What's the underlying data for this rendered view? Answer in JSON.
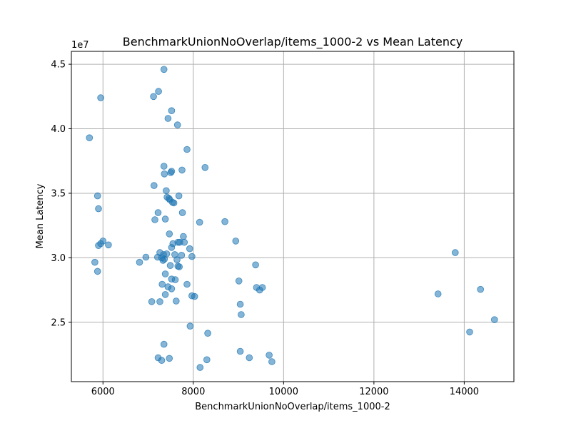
{
  "chart_data": {
    "type": "scatter",
    "title": "BenchmarkUnionNoOverlap/items_1000-2 vs Mean Latency",
    "xlabel": "BenchmarkUnionNoOverlap/items_1000-2",
    "ylabel": "Mean Latency",
    "y_offset_label": "1e7",
    "xlim": [
      5300,
      15100
    ],
    "ylim": [
      20400000,
      46000000
    ],
    "x_ticks": [
      6000,
      8000,
      10000,
      12000,
      14000
    ],
    "x_tick_labels": [
      "6000",
      "8000",
      "10000",
      "12000",
      "14000"
    ],
    "y_ticks": [
      25000000,
      30000000,
      35000000,
      40000000,
      45000000
    ],
    "y_tick_labels": [
      "2.5",
      "3.0",
      "3.5",
      "4.0",
      "4.5"
    ],
    "grid": true,
    "point_color": "#1f77b4",
    "point_alpha": 0.55,
    "points": [
      [
        7350,
        44600000
      ],
      [
        5950,
        42400000
      ],
      [
        7230,
        42900000
      ],
      [
        7120,
        42500000
      ],
      [
        7520,
        41400000
      ],
      [
        7440,
        40800000
      ],
      [
        7650,
        40300000
      ],
      [
        5700,
        39300000
      ],
      [
        7860,
        38400000
      ],
      [
        7350,
        37100000
      ],
      [
        8260,
        37000000
      ],
      [
        7750,
        36800000
      ],
      [
        7520,
        36700000
      ],
      [
        7500,
        36600000
      ],
      [
        7360,
        36500000
      ],
      [
        7130,
        35600000
      ],
      [
        7400,
        35200000
      ],
      [
        5880,
        34800000
      ],
      [
        7420,
        34700000
      ],
      [
        7460,
        34600000
      ],
      [
        7680,
        34800000
      ],
      [
        7480,
        34500000
      ],
      [
        7540,
        34300000
      ],
      [
        7570,
        34250000
      ],
      [
        5900,
        33800000
      ],
      [
        7220,
        33500000
      ],
      [
        7760,
        33500000
      ],
      [
        7380,
        33000000
      ],
      [
        7150,
        32950000
      ],
      [
        8140,
        32750000
      ],
      [
        8700,
        32800000
      ],
      [
        7470,
        31850000
      ],
      [
        7780,
        31650000
      ],
      [
        6000,
        31300000
      ],
      [
        7800,
        31200000
      ],
      [
        7660,
        31200000
      ],
      [
        7700,
        31200000
      ],
      [
        7550,
        31100000
      ],
      [
        8940,
        31300000
      ],
      [
        5950,
        31100000
      ],
      [
        5900,
        30950000
      ],
      [
        6120,
        31000000
      ],
      [
        7520,
        30800000
      ],
      [
        7920,
        30700000
      ],
      [
        7260,
        30400000
      ],
      [
        7340,
        30250000
      ],
      [
        7410,
        30300000
      ],
      [
        7590,
        30250000
      ],
      [
        7740,
        30200000
      ],
      [
        7970,
        30100000
      ],
      [
        7210,
        30050000
      ],
      [
        6950,
        30050000
      ],
      [
        7300,
        30000000
      ],
      [
        7360,
        29900000
      ],
      [
        7330,
        29800000
      ],
      [
        7640,
        29850000
      ],
      [
        6810,
        29650000
      ],
      [
        5820,
        29650000
      ],
      [
        7490,
        29400000
      ],
      [
        7660,
        29350000
      ],
      [
        7690,
        29300000
      ],
      [
        9380,
        29450000
      ],
      [
        5880,
        28950000
      ],
      [
        7380,
        28750000
      ],
      [
        7520,
        28350000
      ],
      [
        7600,
        28300000
      ],
      [
        9010,
        28200000
      ],
      [
        7860,
        27950000
      ],
      [
        7310,
        27950000
      ],
      [
        7440,
        27750000
      ],
      [
        7520,
        27600000
      ],
      [
        9400,
        27700000
      ],
      [
        9530,
        27700000
      ],
      [
        9470,
        27500000
      ],
      [
        7380,
        27150000
      ],
      [
        7970,
        27050000
      ],
      [
        8030,
        27000000
      ],
      [
        13420,
        27200000
      ],
      [
        14360,
        27550000
      ],
      [
        7080,
        26600000
      ],
      [
        7260,
        26600000
      ],
      [
        7620,
        26650000
      ],
      [
        9040,
        26400000
      ],
      [
        9060,
        25600000
      ],
      [
        13800,
        30400000
      ],
      [
        14670,
        25200000
      ],
      [
        7930,
        24700000
      ],
      [
        8320,
        24150000
      ],
      [
        14120,
        24250000
      ],
      [
        7350,
        23300000
      ],
      [
        9040,
        22750000
      ],
      [
        9680,
        22450000
      ],
      [
        7220,
        22250000
      ],
      [
        7470,
        22200000
      ],
      [
        7300,
        22050000
      ],
      [
        8300,
        22100000
      ],
      [
        9240,
        22250000
      ],
      [
        9740,
        21950000
      ],
      [
        8150,
        21500000
      ]
    ]
  }
}
